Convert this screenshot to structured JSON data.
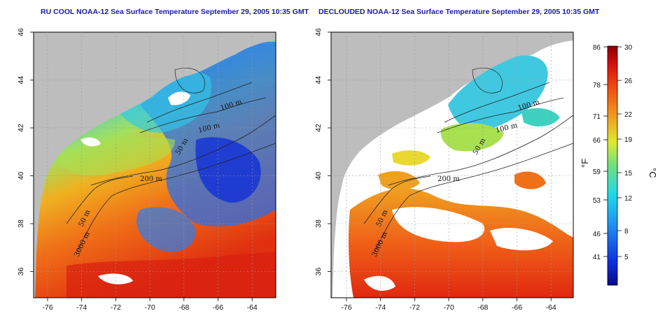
{
  "titles": {
    "left": "RU COOL NOAA-12 Sea Surface Temperature September 29, 2005 10:35 GMT",
    "right": "DECLOUDED NOAA-12 Sea Surface Temperature September 29, 2005 10:35 GMT"
  },
  "axes": {
    "lon_ticks": [
      "-76",
      "-74",
      "-72",
      "-70",
      "-68",
      "-66",
      "-64"
    ],
    "lat_ticks": [
      "46",
      "44",
      "42",
      "40",
      "38",
      "36"
    ]
  },
  "contour_labels": [
    "100 m",
    "100 m",
    "50 m",
    "200 m",
    "50 m",
    "3000 m"
  ],
  "colorbar": {
    "fahrenheit_unit": "°F",
    "celsius_unit": "°C",
    "fahrenheit_ticks": [
      "86",
      "78",
      "71",
      "66",
      "59",
      "53",
      "46",
      "41"
    ],
    "celsius_ticks": [
      "30",
      "26",
      "22",
      "19",
      "15",
      "12",
      "8",
      "5"
    ]
  },
  "colors": {
    "title": "#1a1aa6",
    "land": "#bdbdbd",
    "cloud": "#ffffff",
    "cold": "#1030e0",
    "cool": "#20b8f0",
    "mid": "#80e070",
    "warm": "#f0a020",
    "hot": "#e03010"
  }
}
